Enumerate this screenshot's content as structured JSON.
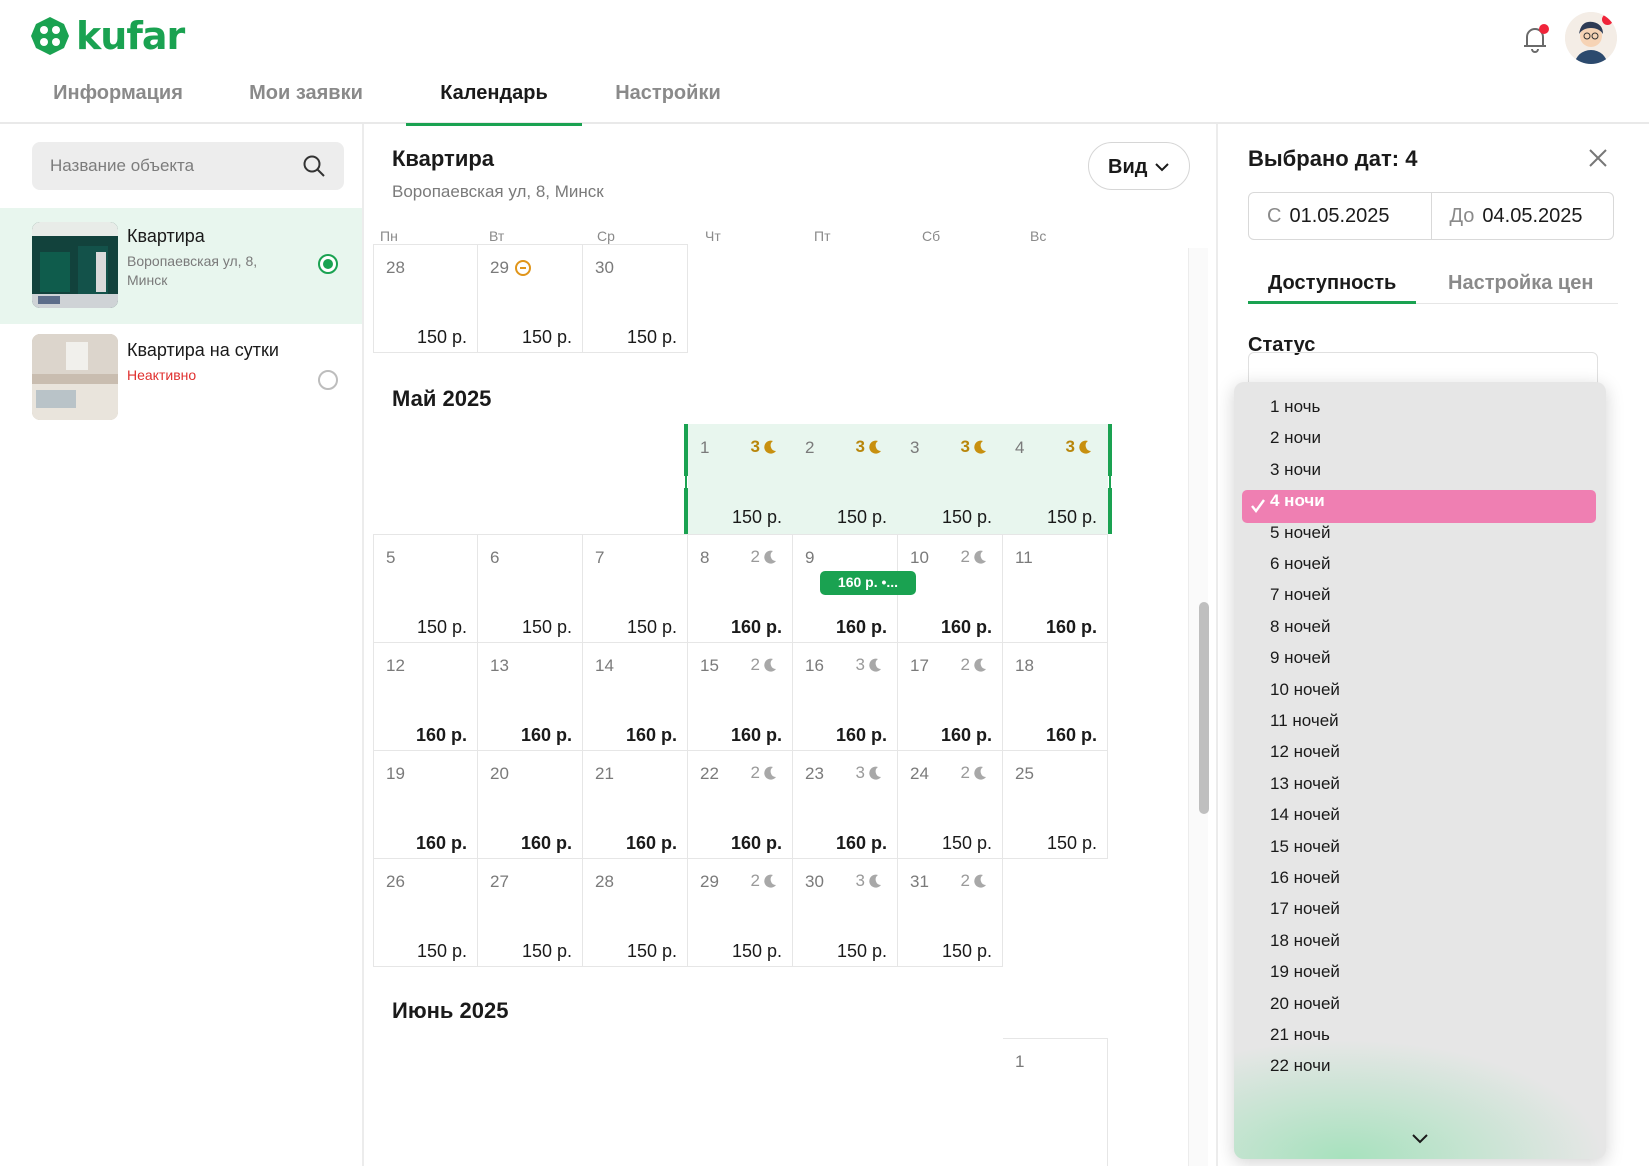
{
  "brand": {
    "name": "kufar",
    "color": "#1aa251"
  },
  "header": {
    "tabs": [
      {
        "label": "Информация"
      },
      {
        "label": "Мои заявки"
      },
      {
        "label": "Календарь"
      },
      {
        "label": "Настройки"
      }
    ],
    "active_tab": "Календарь",
    "icons": [
      "bell-icon",
      "avatar"
    ]
  },
  "sidebar": {
    "search_placeholder": "Название объекта",
    "objects": [
      {
        "name": "Квартира",
        "address": "Воропаевская ул, 8, Минск",
        "selected": true
      },
      {
        "name": "Квартира на сутки",
        "status": "Неактивно",
        "selected": false
      }
    ]
  },
  "calendar": {
    "object_title": "Квартира",
    "object_address": "Воропаевская ул, 8, Минск",
    "view_label": "Вид",
    "weekdays": [
      "Пн",
      "Вт",
      "Ср",
      "Чт",
      "Пт",
      "Сб",
      "Вс"
    ],
    "prev_month_tail": [
      {
        "d": "28",
        "p": "150 р."
      },
      {
        "d": "29",
        "p": "150 р.",
        "blocked": true
      },
      {
        "d": "30",
        "p": "150 р."
      }
    ],
    "may": {
      "title": "Май 2025",
      "start_col": 3,
      "days": [
        {
          "d": "1",
          "p": "150 р.",
          "n": "3",
          "sel": true
        },
        {
          "d": "2",
          "p": "150 р.",
          "n": "3",
          "sel": true
        },
        {
          "d": "3",
          "p": "150 р.",
          "n": "3",
          "sel": true
        },
        {
          "d": "4",
          "p": "150 р.",
          "n": "3",
          "sel": true
        },
        {
          "d": "5",
          "p": "150 р."
        },
        {
          "d": "6",
          "p": "150 р."
        },
        {
          "d": "7",
          "p": "150 р."
        },
        {
          "d": "8",
          "p": "160 р.",
          "n": "2",
          "b": true
        },
        {
          "d": "9",
          "p": "160 р.",
          "b": true,
          "tag": "160 р. •..."
        },
        {
          "d": "10",
          "p": "160 р.",
          "n": "2",
          "b": true
        },
        {
          "d": "11",
          "p": "160 р.",
          "b": true
        },
        {
          "d": "12",
          "p": "160 р.",
          "b": true
        },
        {
          "d": "13",
          "p": "160 р.",
          "b": true
        },
        {
          "d": "14",
          "p": "160 р.",
          "b": true
        },
        {
          "d": "15",
          "p": "160 р.",
          "n": "2",
          "b": true
        },
        {
          "d": "16",
          "p": "160 р.",
          "n": "3",
          "b": true
        },
        {
          "d": "17",
          "p": "160 р.",
          "n": "2",
          "b": true
        },
        {
          "d": "18",
          "p": "160 р.",
          "b": true
        },
        {
          "d": "19",
          "p": "160 р.",
          "b": true
        },
        {
          "d": "20",
          "p": "160 р.",
          "b": true
        },
        {
          "d": "21",
          "p": "160 р.",
          "b": true
        },
        {
          "d": "22",
          "p": "160 р.",
          "n": "2",
          "b": true
        },
        {
          "d": "23",
          "p": "160 р.",
          "n": "3",
          "b": true
        },
        {
          "d": "24",
          "p": "150 р.",
          "n": "2"
        },
        {
          "d": "25",
          "p": "150 р."
        },
        {
          "d": "26",
          "p": "150 р."
        },
        {
          "d": "27",
          "p": "150 р."
        },
        {
          "d": "28",
          "p": "150 р."
        },
        {
          "d": "29",
          "p": "150 р.",
          "n": "2"
        },
        {
          "d": "30",
          "p": "150 р.",
          "n": "3"
        },
        {
          "d": "31",
          "p": "150 р.",
          "n": "2"
        }
      ]
    },
    "june": {
      "title": "Июнь 2025",
      "first_day": "1"
    }
  },
  "panel": {
    "title": "Выбрано дат: 4",
    "from_prefix": "С",
    "from_date": "01.05.2025",
    "to_prefix": "До",
    "to_date": "04.05.2025",
    "tabs": [
      "Доступность",
      "Настройка цен"
    ],
    "status_label": "Статус"
  },
  "dropdown": {
    "selected": "4 ночи",
    "options": [
      "1 ночь",
      "2 ночи",
      "3 ночи",
      "4 ночи",
      "5 ночей",
      "6 ночей",
      "7 ночей",
      "8 ночей",
      "9 ночей",
      "10 ночей",
      "11 ночей",
      "12 ночей",
      "13 ночей",
      "14 ночей",
      "15 ночей",
      "16 ночей",
      "17 ночей",
      "18 ночей",
      "19 ночей",
      "20 ночей",
      "21 ночь",
      "22 ночи"
    ],
    "highlight_color": "#ef7fb2"
  }
}
